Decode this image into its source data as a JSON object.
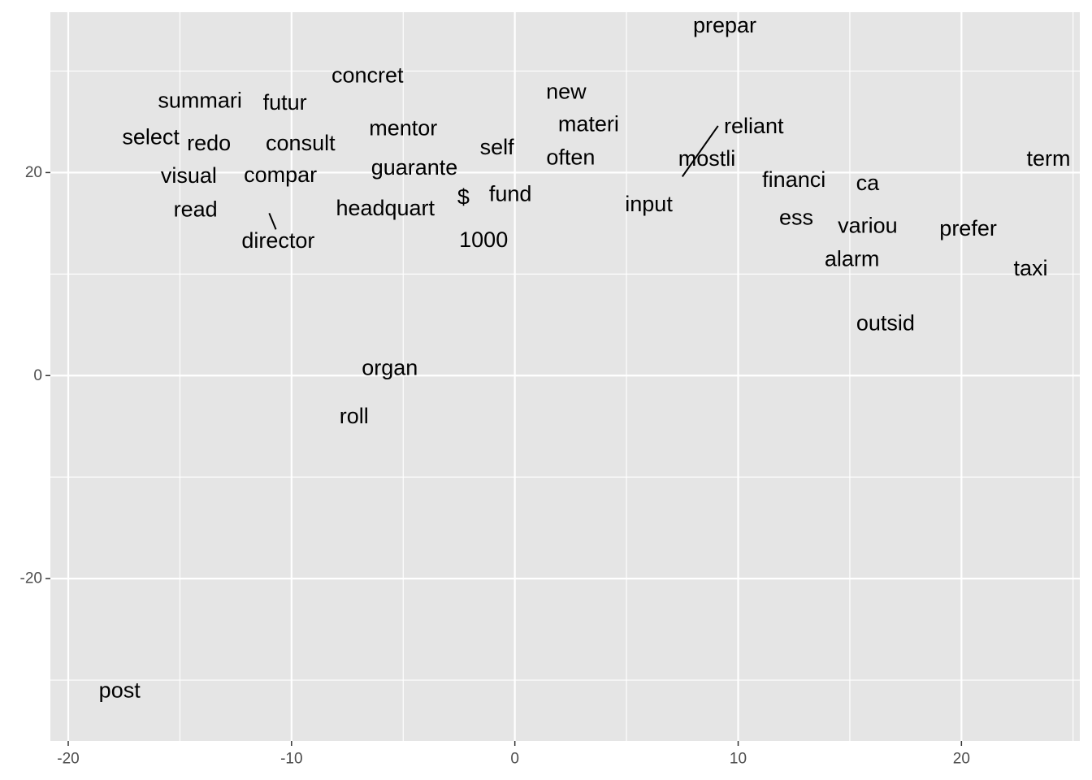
{
  "chart_data": {
    "type": "scatter",
    "title": "",
    "xlabel": "",
    "ylabel": "",
    "xlim": [
      -20.8,
      25.3
    ],
    "ylim": [
      -36.0,
      35.8
    ],
    "x_ticks": [
      -20,
      -10,
      0,
      10,
      20
    ],
    "y_ticks": [
      -20,
      0,
      20
    ],
    "x_tick_labels": [
      "-20",
      "-10",
      "0",
      "10",
      "20"
    ],
    "y_tick_labels": [
      "-20",
      "0",
      "20"
    ],
    "grid": true,
    "colors": {
      "panel_bg": "#E5E5E5",
      "grid_major": "#FFFFFF",
      "tick_text": "#4D4D4D",
      "label_text": "#000000"
    },
    "points": [
      {
        "label": "prepar",
        "x": 9.4,
        "y": 34.5
      },
      {
        "label": "concret",
        "x": -6.6,
        "y": 29.6
      },
      {
        "label": "new",
        "x": 2.3,
        "y": 28.0
      },
      {
        "label": "summari",
        "x": -14.1,
        "y": 27.1
      },
      {
        "label": "futur",
        "x": -10.3,
        "y": 26.9
      },
      {
        "label": "materi",
        "x": 3.3,
        "y": 24.8
      },
      {
        "label": "reliant",
        "x": 10.7,
        "y": 24.6
      },
      {
        "label": "mentor",
        "x": -5.0,
        "y": 24.4
      },
      {
        "label": "select",
        "x": -16.3,
        "y": 23.5
      },
      {
        "label": "redo",
        "x": -13.7,
        "y": 22.9
      },
      {
        "label": "consult",
        "x": -9.6,
        "y": 22.9
      },
      {
        "label": "self",
        "x": -0.8,
        "y": 22.5
      },
      {
        "label": "often",
        "x": 2.5,
        "y": 21.5
      },
      {
        "label": "mostli",
        "x": 8.6,
        "y": 21.4
      },
      {
        "label": "term",
        "x": 23.9,
        "y": 21.4
      },
      {
        "label": "guarante",
        "x": -4.5,
        "y": 20.5
      },
      {
        "label": "visual",
        "x": -14.6,
        "y": 19.7
      },
      {
        "label": "compar",
        "x": -10.5,
        "y": 19.8
      },
      {
        "label": "financi",
        "x": 12.5,
        "y": 19.3
      },
      {
        "label": "ca",
        "x": 15.8,
        "y": 19.0
      },
      {
        "label": "$",
        "x": -2.3,
        "y": 17.6
      },
      {
        "label": "fund",
        "x": -0.2,
        "y": 17.9
      },
      {
        "label": "input",
        "x": 6.0,
        "y": 16.9
      },
      {
        "label": "read",
        "x": -14.3,
        "y": 16.4
      },
      {
        "label": "headquart",
        "x": -5.8,
        "y": 16.5
      },
      {
        "label": "ess",
        "x": 12.6,
        "y": 15.6
      },
      {
        "label": "variou",
        "x": 15.8,
        "y": 14.8
      },
      {
        "label": "prefer",
        "x": 20.3,
        "y": 14.5
      },
      {
        "label": "director",
        "x": -10.6,
        "y": 13.3
      },
      {
        "label": "1000",
        "x": -1.4,
        "y": 13.4
      },
      {
        "label": "alarm",
        "x": 15.1,
        "y": 11.5
      },
      {
        "label": "taxi",
        "x": 23.1,
        "y": 10.6
      },
      {
        "label": "outsid",
        "x": 16.6,
        "y": 5.2
      },
      {
        "label": "organ",
        "x": -5.6,
        "y": 0.8
      },
      {
        "label": "roll",
        "x": -7.2,
        "y": -4.0
      },
      {
        "label": "post",
        "x": -17.7,
        "y": -31.0
      }
    ],
    "segments": [
      {
        "x1": 9.1,
        "y1": 24.6,
        "x2": 7.5,
        "y2": 19.6
      },
      {
        "x1": -11.0,
        "y1": 16.0,
        "x2": -10.7,
        "y2": 14.4
      }
    ]
  }
}
